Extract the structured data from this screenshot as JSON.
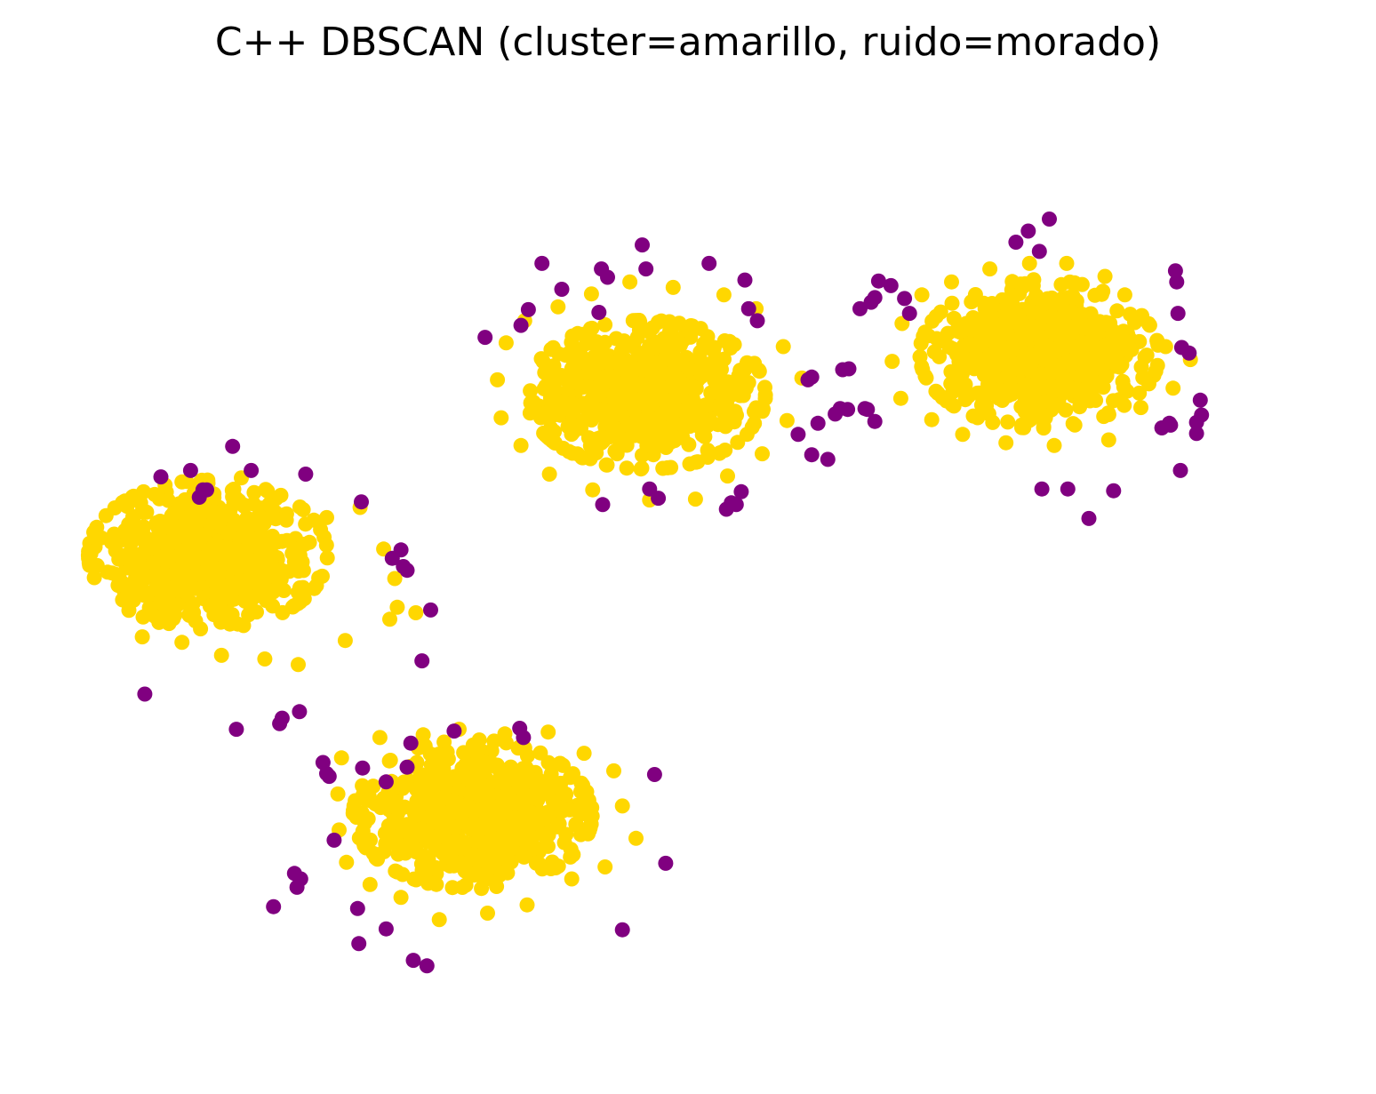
{
  "chart_data": {
    "type": "scatter",
    "title": "C++ DBSCAN (cluster=amarillo, ruido=morado)",
    "xlabel": "",
    "ylabel": "",
    "axes_visible": false,
    "grid": false,
    "legend": "none",
    "xlim": [
      0,
      100
    ],
    "ylim": [
      0,
      100
    ],
    "colors": {
      "cluster": "#FFD700",
      "noise": "#800080"
    },
    "clusters": [
      {
        "center": [
          11.2,
          52.5
        ],
        "spread": [
          4.2,
          3.5
        ],
        "count": 700
      },
      {
        "center": [
          46.6,
          69.8
        ],
        "spread": [
          4.2,
          3.5
        ],
        "count": 700
      },
      {
        "center": [
          78.4,
          74.2
        ],
        "spread": [
          4.2,
          3.5
        ],
        "count": 700
      },
      {
        "center": [
          32.6,
          24.4
        ],
        "spread": [
          4.2,
          3.5
        ],
        "count": 700
      }
    ],
    "cluster_ring_points": [
      [
        6.9,
        59.0
      ],
      [
        10.5,
        60.2
      ],
      [
        13.9,
        60.8
      ],
      [
        17.1,
        58.9
      ],
      [
        20.8,
        56.5
      ],
      [
        23.5,
        57.6
      ],
      [
        25.4,
        53.1
      ],
      [
        26.3,
        49.9
      ],
      [
        25.9,
        45.5
      ],
      [
        22.3,
        43.2
      ],
      [
        18.5,
        40.6
      ],
      [
        15.8,
        41.2
      ],
      [
        12.3,
        41.6
      ],
      [
        9.1,
        43.0
      ],
      [
        5.9,
        43.6
      ],
      [
        4.3,
        47.6
      ],
      [
        4.0,
        52.0
      ],
      [
        4.5,
        55.1
      ],
      [
        26.5,
        46.8
      ],
      [
        28.0,
        46.2
      ],
      [
        35.3,
        75.4
      ],
      [
        36.8,
        77.8
      ],
      [
        39.5,
        79.3
      ],
      [
        42.2,
        80.7
      ],
      [
        45.3,
        82.0
      ],
      [
        48.8,
        81.4
      ],
      [
        52.9,
        80.6
      ],
      [
        55.5,
        79.1
      ],
      [
        57.7,
        75.0
      ],
      [
        59.2,
        71.6
      ],
      [
        58.0,
        67.0
      ],
      [
        56.0,
        63.4
      ],
      [
        53.2,
        61.0
      ],
      [
        50.6,
        58.5
      ],
      [
        46.9,
        58.4
      ],
      [
        42.3,
        59.5
      ],
      [
        38.8,
        61.2
      ],
      [
        36.5,
        64.3
      ],
      [
        34.9,
        67.3
      ],
      [
        34.6,
        71.4
      ],
      [
        67.3,
        77.5
      ],
      [
        68.9,
        80.6
      ],
      [
        71.3,
        82.0
      ],
      [
        74.4,
        83.4
      ],
      [
        77.6,
        84.0
      ],
      [
        80.6,
        84.0
      ],
      [
        83.7,
        82.6
      ],
      [
        85.3,
        80.6
      ],
      [
        86.1,
        77.6
      ],
      [
        88.6,
        75.0
      ],
      [
        90.6,
        73.6
      ],
      [
        89.2,
        70.5
      ],
      [
        86.6,
        68.4
      ],
      [
        84.0,
        64.9
      ],
      [
        79.6,
        64.3
      ],
      [
        75.7,
        64.6
      ],
      [
        72.2,
        65.5
      ],
      [
        69.7,
        67.1
      ],
      [
        67.2,
        69.4
      ],
      [
        66.5,
        73.4
      ],
      [
        22.0,
        30.5
      ],
      [
        25.1,
        32.7
      ],
      [
        28.6,
        33.0
      ],
      [
        31.5,
        33.6
      ],
      [
        35.2,
        33.1
      ],
      [
        38.7,
        33.3
      ],
      [
        41.6,
        31.0
      ],
      [
        44.0,
        29.1
      ],
      [
        44.7,
        25.3
      ],
      [
        45.8,
        21.8
      ],
      [
        43.3,
        18.7
      ],
      [
        40.6,
        17.4
      ],
      [
        37.0,
        14.6
      ],
      [
        33.8,
        13.7
      ],
      [
        29.9,
        13.0
      ],
      [
        26.8,
        15.4
      ],
      [
        24.3,
        16.8
      ],
      [
        22.4,
        19.2
      ],
      [
        21.8,
        22.7
      ],
      [
        21.7,
        26.6
      ]
    ],
    "noise_points": [
      [
        6.1,
        37.4
      ],
      [
        13.5,
        33.6
      ],
      [
        17.0,
        34.2
      ],
      [
        17.2,
        34.8
      ],
      [
        7.4,
        60.9
      ],
      [
        9.8,
        61.6
      ],
      [
        13.2,
        64.2
      ],
      [
        14.7,
        61.6
      ],
      [
        19.1,
        61.2
      ],
      [
        10.5,
        58.7
      ],
      [
        10.8,
        59.5
      ],
      [
        11.1,
        59.5
      ],
      [
        23.6,
        58.2
      ],
      [
        26.1,
        52.1
      ],
      [
        26.8,
        53.0
      ],
      [
        27.0,
        51.2
      ],
      [
        27.3,
        50.8
      ],
      [
        29.2,
        46.5
      ],
      [
        28.5,
        41.0
      ],
      [
        33.6,
        76.0
      ],
      [
        37.1,
        79.0
      ],
      [
        38.2,
        84.0
      ],
      [
        39.8,
        81.2
      ],
      [
        36.5,
        77.3
      ],
      [
        43.0,
        83.4
      ],
      [
        43.5,
        82.5
      ],
      [
        42.8,
        78.7
      ],
      [
        46.3,
        86.0
      ],
      [
        46.6,
        83.4
      ],
      [
        51.7,
        84.0
      ],
      [
        54.6,
        82.2
      ],
      [
        54.9,
        79.1
      ],
      [
        55.6,
        77.8
      ],
      [
        59.7,
        71.4
      ],
      [
        60.0,
        71.7
      ],
      [
        62.5,
        72.5
      ],
      [
        61.9,
        67.7
      ],
      [
        62.9,
        68.2
      ],
      [
        64.3,
        68.3
      ],
      [
        65.1,
        66.9
      ],
      [
        64.5,
        68.2
      ],
      [
        60.5,
        66.7
      ],
      [
        61.3,
        62.8
      ],
      [
        60.0,
        63.3
      ],
      [
        54.3,
        59.3
      ],
      [
        53.5,
        58.1
      ],
      [
        53.9,
        57.9
      ],
      [
        53.1,
        57.4
      ],
      [
        46.9,
        59.6
      ],
      [
        47.6,
        58.6
      ],
      [
        43.1,
        57.9
      ],
      [
        65.4,
        82.1
      ],
      [
        66.4,
        81.6
      ],
      [
        67.5,
        80.2
      ],
      [
        67.9,
        78.6
      ],
      [
        63.9,
        79.1
      ],
      [
        64.8,
        79.8
      ],
      [
        65.1,
        80.3
      ],
      [
        76.5,
        86.3
      ],
      [
        77.5,
        87.5
      ],
      [
        78.4,
        85.3
      ],
      [
        79.2,
        88.8
      ],
      [
        89.4,
        83.2
      ],
      [
        89.5,
        82.0
      ],
      [
        89.6,
        78.6
      ],
      [
        89.9,
        74.9
      ],
      [
        90.5,
        74.3
      ],
      [
        91.4,
        69.2
      ],
      [
        91.1,
        66.8
      ],
      [
        91.5,
        67.6
      ],
      [
        91.1,
        65.6
      ],
      [
        89.0,
        66.5
      ],
      [
        88.3,
        66.2
      ],
      [
        88.9,
        66.7
      ],
      [
        89.8,
        61.6
      ],
      [
        78.6,
        59.6
      ],
      [
        80.7,
        59.6
      ],
      [
        84.4,
        59.4
      ],
      [
        82.4,
        56.4
      ],
      [
        62.3,
        68.3
      ],
      [
        58.9,
        65.5
      ],
      [
        63.0,
        72.6
      ],
      [
        18.6,
        35.5
      ],
      [
        20.5,
        30.0
      ],
      [
        20.8,
        28.8
      ],
      [
        21.4,
        21.6
      ],
      [
        18.2,
        18.0
      ],
      [
        18.7,
        17.4
      ],
      [
        18.4,
        16.5
      ],
      [
        16.5,
        14.4
      ],
      [
        23.3,
        14.2
      ],
      [
        25.6,
        12.0
      ],
      [
        23.4,
        10.4
      ],
      [
        27.8,
        8.6
      ],
      [
        28.9,
        8.0
      ],
      [
        25.6,
        27.9
      ],
      [
        27.6,
        32.1
      ],
      [
        27.3,
        29.5
      ],
      [
        31.1,
        33.4
      ],
      [
        36.4,
        33.7
      ],
      [
        36.7,
        32.7
      ],
      [
        47.3,
        28.7
      ],
      [
        48.2,
        19.1
      ],
      [
        44.7,
        11.9
      ],
      [
        23.7,
        29.4
      ],
      [
        21.0,
        28.5
      ]
    ]
  }
}
